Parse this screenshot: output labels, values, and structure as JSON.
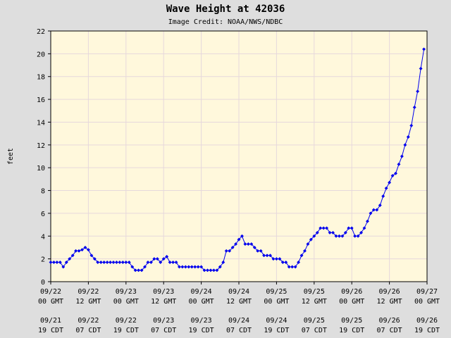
{
  "chart_data": {
    "type": "scatter",
    "title": "Wave Height at 42036",
    "subtitle": "Image Credit: NOAA/NWS/NDBC",
    "ylabel": "feet",
    "xlabel": "",
    "ylim": [
      0,
      22
    ],
    "xlim": [
      0,
      120
    ],
    "x_unit": "hours since 09/22 00 GMT",
    "y_ticks": [
      "0",
      "2",
      "4",
      "6",
      "8",
      "10",
      "12",
      "14",
      "16",
      "18",
      "20",
      "22"
    ],
    "x_ticks": [
      {
        "pos": 0,
        "gmt": [
          "09/22",
          "00 GMT"
        ],
        "cdt": [
          "09/21",
          "19 CDT"
        ]
      },
      {
        "pos": 12,
        "gmt": [
          "09/22",
          "12 GMT"
        ],
        "cdt": [
          "09/22",
          "07 CDT"
        ]
      },
      {
        "pos": 24,
        "gmt": [
          "09/23",
          "00 GMT"
        ],
        "cdt": [
          "09/22",
          "19 CDT"
        ]
      },
      {
        "pos": 36,
        "gmt": [
          "09/23",
          "12 GMT"
        ],
        "cdt": [
          "09/23",
          "07 CDT"
        ]
      },
      {
        "pos": 48,
        "gmt": [
          "09/24",
          "00 GMT"
        ],
        "cdt": [
          "09/23",
          "19 CDT"
        ]
      },
      {
        "pos": 60,
        "gmt": [
          "09/24",
          "12 GMT"
        ],
        "cdt": [
          "09/24",
          "07 CDT"
        ]
      },
      {
        "pos": 72,
        "gmt": [
          "09/25",
          "00 GMT"
        ],
        "cdt": [
          "09/24",
          "19 CDT"
        ]
      },
      {
        "pos": 84,
        "gmt": [
          "09/25",
          "12 GMT"
        ],
        "cdt": [
          "09/25",
          "07 CDT"
        ]
      },
      {
        "pos": 96,
        "gmt": [
          "09/26",
          "00 GMT"
        ],
        "cdt": [
          "09/25",
          "19 CDT"
        ]
      },
      {
        "pos": 108,
        "gmt": [
          "09/26",
          "12 GMT"
        ],
        "cdt": [
          "09/26",
          "07 CDT"
        ]
      },
      {
        "pos": 120,
        "gmt": [
          "09/27",
          "00 GMT"
        ],
        "cdt": [
          "09/26",
          "19 CDT"
        ]
      }
    ],
    "grid": true,
    "colors": {
      "plot_bg": "#fff8dc",
      "page_bg": "#dedede",
      "grid": "#e6d8dc",
      "points": "#0000ee"
    },
    "series": [
      {
        "x": [
          0,
          1,
          2,
          3,
          4,
          5,
          6,
          7,
          8,
          9,
          10,
          11,
          12,
          13,
          14,
          15,
          16,
          17,
          18,
          19,
          20,
          21,
          22,
          23,
          24,
          25,
          26,
          27,
          28,
          29,
          30,
          31,
          32,
          33,
          34,
          35,
          36,
          37,
          38,
          39,
          40,
          41,
          42,
          43,
          44,
          45,
          46,
          47,
          48,
          49,
          50,
          51,
          52,
          53,
          54,
          55,
          56,
          57,
          58,
          59,
          60,
          61,
          62,
          63,
          64,
          65,
          66,
          67,
          68,
          69,
          70,
          71,
          72,
          73,
          74,
          75,
          76,
          77,
          78,
          79,
          80,
          81,
          82,
          83,
          84,
          85,
          86,
          87,
          88,
          89,
          90,
          91,
          92,
          93,
          94,
          95,
          96,
          97,
          98,
          99,
          100,
          101,
          102,
          103,
          104,
          105,
          106,
          107,
          108,
          109,
          110,
          111,
          112,
          113,
          114,
          115,
          116,
          117,
          118,
          119
        ],
        "y": [
          1.7,
          1.7,
          1.7,
          1.7,
          1.3,
          1.7,
          2.0,
          2.3,
          2.7,
          2.7,
          2.8,
          3.0,
          2.8,
          2.3,
          2.0,
          1.7,
          1.7,
          1.7,
          1.7,
          1.7,
          1.7,
          1.7,
          1.7,
          1.7,
          1.7,
          1.7,
          1.3,
          1.0,
          1.0,
          1.0,
          1.3,
          1.7,
          1.7,
          2.0,
          2.0,
          1.7,
          2.0,
          2.2,
          1.7,
          1.7,
          1.7,
          1.3,
          1.3,
          1.3,
          1.3,
          1.3,
          1.3,
          1.3,
          1.3,
          1.0,
          1.0,
          1.0,
          1.0,
          1.0,
          1.3,
          1.7,
          2.7,
          2.7,
          3.0,
          3.3,
          3.7,
          4.0,
          3.3,
          3.3,
          3.3,
          3.0,
          2.7,
          2.7,
          2.3,
          2.3,
          2.3,
          2.0,
          2.0,
          2.0,
          1.7,
          1.7,
          1.3,
          1.3,
          1.3,
          1.7,
          2.3,
          2.7,
          3.3,
          3.7,
          4.0,
          4.3,
          4.7,
          4.7,
          4.7,
          4.3,
          4.3,
          4.0,
          4.0,
          4.0,
          4.3,
          4.7,
          4.7,
          4.0,
          4.0,
          4.3,
          4.7,
          5.3,
          6.0,
          6.3,
          6.3,
          6.7,
          7.5,
          8.2,
          8.7,
          9.3,
          9.5,
          10.3,
          11.0,
          12.0,
          12.7,
          13.7,
          15.3,
          16.7,
          18.7,
          20.4
        ]
      }
    ]
  }
}
